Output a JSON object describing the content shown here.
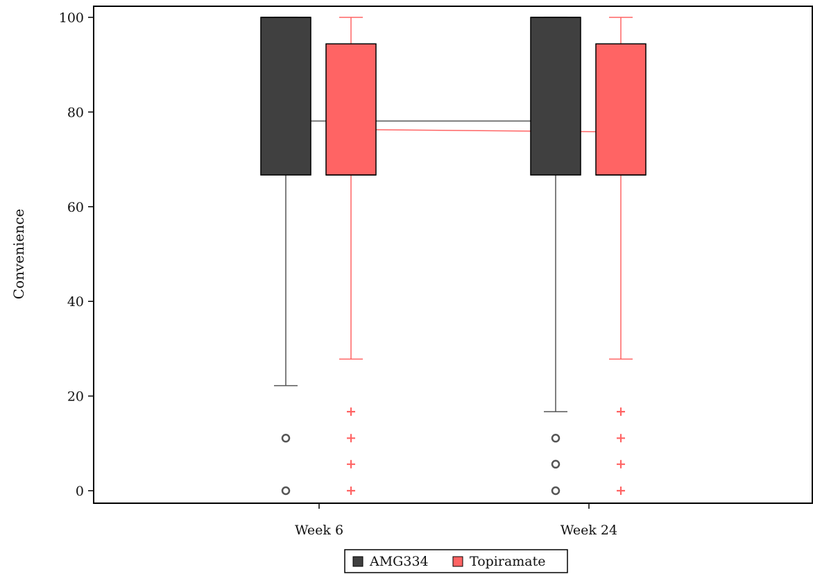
{
  "chart_data": {
    "type": "box",
    "ylabel": "Convenience",
    "xlabel": "",
    "ylim": [
      0,
      100
    ],
    "yticks": [
      0,
      20,
      40,
      60,
      80,
      100
    ],
    "categories": [
      "Week 6",
      "Week 24"
    ],
    "legend_position": "bottom-center",
    "series": [
      {
        "name": "AMG334",
        "color": "#404040",
        "stroke": "#555555",
        "outlier_marker": "circle",
        "boxes": [
          {
            "category": "Week 6",
            "whisker_low": 22.2,
            "q1": 66.7,
            "median": 100,
            "q3": 100,
            "whisker_high": 100,
            "mean": 78.1,
            "outliers": [
              11.1,
              0
            ]
          },
          {
            "category": "Week 24",
            "whisker_low": 16.7,
            "q1": 66.7,
            "median": 100,
            "q3": 100,
            "whisker_high": 100,
            "mean": 78.1,
            "outliers": [
              11.1,
              5.6,
              0
            ]
          }
        ]
      },
      {
        "name": "Topiramate",
        "color": "#ff6464",
        "stroke": "#ff6464",
        "outlier_marker": "plus",
        "boxes": [
          {
            "category": "Week 6",
            "whisker_low": 27.8,
            "q1": 66.7,
            "median": 66.7,
            "q3": 94.4,
            "whisker_high": 100,
            "mean": 76.3,
            "outliers": [
              16.7,
              11.1,
              5.6,
              0
            ]
          },
          {
            "category": "Week 24",
            "whisker_low": 27.8,
            "q1": 66.7,
            "median": 66.7,
            "q3": 94.4,
            "whisker_high": 100,
            "mean": 75.8,
            "outliers": [
              16.7,
              11.1,
              5.6,
              0
            ]
          }
        ]
      }
    ]
  }
}
